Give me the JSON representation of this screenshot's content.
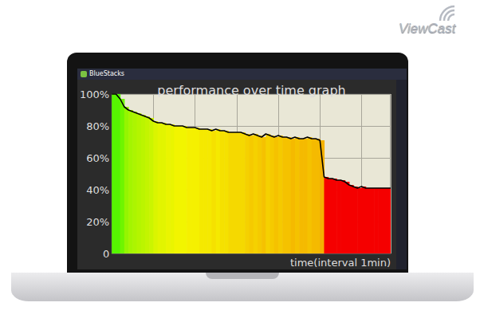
{
  "logo": "ViewCast",
  "window": {
    "title": "BlueStacks"
  },
  "chart_data": {
    "type": "line",
    "title": "performance over time graph",
    "x_label": "time(interval 1min)",
    "x": [
      0,
      1,
      2,
      3,
      4,
      5,
      6,
      7,
      8,
      9,
      10,
      11,
      12,
      13,
      14,
      15,
      16,
      17,
      18,
      19,
      20,
      21,
      22,
      23,
      24,
      25,
      26,
      27,
      28,
      29,
      30,
      31,
      32,
      33,
      34,
      35,
      36,
      37,
      38,
      39,
      40,
      41,
      42,
      43,
      44,
      45,
      46,
      47,
      48,
      49,
      50,
      51,
      52,
      53,
      54,
      55,
      56,
      57,
      58,
      59,
      60,
      61,
      62,
      63,
      64,
      65,
      66,
      67
    ],
    "values": [
      100,
      100,
      97,
      92,
      90,
      89,
      88,
      87,
      86,
      85,
      83,
      82,
      82,
      81,
      81,
      80,
      80,
      80,
      79,
      79,
      79,
      78,
      78,
      78,
      77,
      78,
      77,
      77,
      76,
      76,
      76,
      76,
      75,
      74,
      75,
      74,
      73,
      75,
      74,
      73,
      74,
      73,
      73,
      72,
      73,
      72,
      72,
      73,
      72,
      72,
      71,
      48,
      47,
      47,
      46,
      46,
      45,
      43,
      42,
      41,
      42,
      41,
      41,
      41,
      41,
      41,
      41,
      41
    ],
    "color": "#000000",
    "xlim": [
      0,
      67
    ],
    "xticks": [
      0,
      10,
      20,
      30,
      40,
      50,
      60
    ],
    "ylim": [
      0,
      100
    ],
    "yticks": [
      0,
      {
        "value": 20,
        "label": "20%"
      },
      {
        "value": 40,
        "label": "40%"
      },
      {
        "value": 60,
        "label": "60%"
      },
      {
        "value": 80,
        "label": "80%"
      },
      {
        "value": 100,
        "label": "100%"
      }
    ],
    "grid": true,
    "tick_labels": "y"
  }
}
